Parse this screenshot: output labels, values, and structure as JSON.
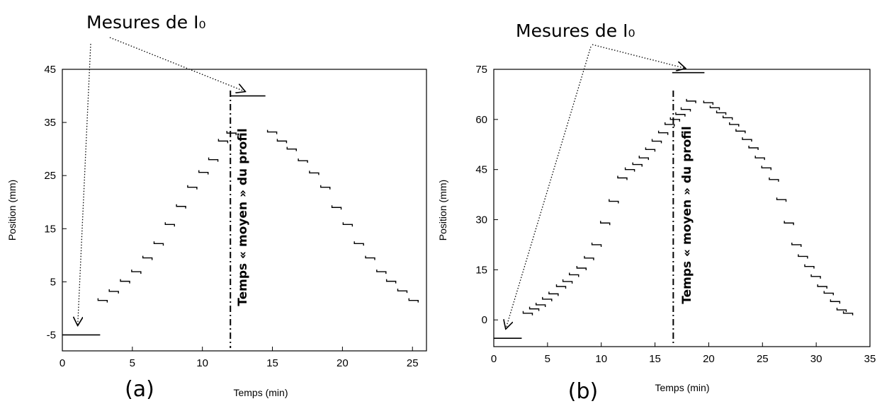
{
  "chart_data": [
    {
      "type": "line",
      "panel_label": "(a)",
      "xlabel": "Temps (min)",
      "ylabel": "Position (mm)",
      "xlim": [
        0,
        26
      ],
      "ylim": [
        -8,
        45
      ],
      "xticks": [
        0,
        5,
        10,
        15,
        20,
        25
      ],
      "yticks": [
        -5,
        5,
        15,
        25,
        35,
        45
      ],
      "mean_time": 12,
      "mean_time_label": "Temps « moyen » du profil",
      "annotation": "Mesures de I₀",
      "i0_segments": [
        {
          "x": [
            0,
            2.7
          ],
          "y": -5
        },
        {
          "x": [
            12,
            14.5
          ],
          "y": 40
        }
      ],
      "steps": [
        {
          "x": 2.6,
          "y": 1.5
        },
        {
          "x": 3.4,
          "y": 3.2
        },
        {
          "x": 4.2,
          "y": 5.1
        },
        {
          "x": 5.0,
          "y": 6.9
        },
        {
          "x": 5.8,
          "y": 9.5
        },
        {
          "x": 6.6,
          "y": 12.2
        },
        {
          "x": 7.4,
          "y": 15.8
        },
        {
          "x": 8.2,
          "y": 19.2
        },
        {
          "x": 9.0,
          "y": 22.8
        },
        {
          "x": 9.8,
          "y": 25.6
        },
        {
          "x": 10.5,
          "y": 28.0
        },
        {
          "x": 11.2,
          "y": 31.5
        },
        {
          "x": 11.8,
          "y": 33.0
        },
        {
          "x": 14.7,
          "y": 33.2
        },
        {
          "x": 15.4,
          "y": 31.5
        },
        {
          "x": 16.1,
          "y": 30.0
        },
        {
          "x": 16.9,
          "y": 27.8
        },
        {
          "x": 17.7,
          "y": 25.5
        },
        {
          "x": 18.5,
          "y": 22.8
        },
        {
          "x": 19.3,
          "y": 19.0
        },
        {
          "x": 20.1,
          "y": 15.8
        },
        {
          "x": 20.9,
          "y": 12.2
        },
        {
          "x": 21.7,
          "y": 9.5
        },
        {
          "x": 22.5,
          "y": 6.9
        },
        {
          "x": 23.2,
          "y": 5.1
        },
        {
          "x": 24.0,
          "y": 3.3
        },
        {
          "x": 24.8,
          "y": 1.5
        }
      ]
    },
    {
      "type": "line",
      "panel_label": "(b)",
      "xlabel": "Temps (min)",
      "ylabel": "Position (mm)",
      "xlim": [
        0,
        35
      ],
      "ylim": [
        -8,
        75
      ],
      "xticks": [
        0,
        5,
        10,
        15,
        20,
        25,
        30,
        35
      ],
      "yticks": [
        0,
        15,
        30,
        45,
        60,
        75
      ],
      "mean_time": 16.7,
      "mean_time_label": "Temps « moyen » du profil",
      "annotation": "Mesures de I₀",
      "i0_segments": [
        {
          "x": [
            0,
            2.6
          ],
          "y": -5.5
        },
        {
          "x": [
            16.6,
            19.6
          ],
          "y": 74
        }
      ],
      "steps": [
        {
          "x": 2.8,
          "y": 2.0
        },
        {
          "x": 3.4,
          "y": 3.3
        },
        {
          "x": 4.0,
          "y": 4.5
        },
        {
          "x": 4.6,
          "y": 6.2
        },
        {
          "x": 5.2,
          "y": 7.8
        },
        {
          "x": 5.9,
          "y": 10.0
        },
        {
          "x": 6.5,
          "y": 11.5
        },
        {
          "x": 7.1,
          "y": 13.5
        },
        {
          "x": 7.8,
          "y": 15.5
        },
        {
          "x": 8.5,
          "y": 18.5
        },
        {
          "x": 9.2,
          "y": 22.5
        },
        {
          "x": 10.0,
          "y": 29.0
        },
        {
          "x": 10.8,
          "y": 35.5
        },
        {
          "x": 11.6,
          "y": 42.5
        },
        {
          "x": 12.3,
          "y": 45.0
        },
        {
          "x": 13.0,
          "y": 46.5
        },
        {
          "x": 13.6,
          "y": 48.5
        },
        {
          "x": 14.2,
          "y": 51.0
        },
        {
          "x": 14.8,
          "y": 53.5
        },
        {
          "x": 15.4,
          "y": 56.0
        },
        {
          "x": 16.0,
          "y": 58.5
        },
        {
          "x": 16.5,
          "y": 60.0
        },
        {
          "x": 17.0,
          "y": 61.5
        },
        {
          "x": 17.5,
          "y": 63.0
        },
        {
          "x": 18.0,
          "y": 65.5
        },
        {
          "x": 19.6,
          "y": 65.0
        },
        {
          "x": 20.2,
          "y": 63.5
        },
        {
          "x": 20.8,
          "y": 62.0
        },
        {
          "x": 21.4,
          "y": 60.5
        },
        {
          "x": 22.0,
          "y": 58.5
        },
        {
          "x": 22.6,
          "y": 56.5
        },
        {
          "x": 23.2,
          "y": 54.0
        },
        {
          "x": 23.8,
          "y": 51.5
        },
        {
          "x": 24.4,
          "y": 48.5
        },
        {
          "x": 25.0,
          "y": 45.5
        },
        {
          "x": 25.7,
          "y": 42.0
        },
        {
          "x": 26.4,
          "y": 36.0
        },
        {
          "x": 27.1,
          "y": 29.0
        },
        {
          "x": 27.8,
          "y": 22.5
        },
        {
          "x": 28.4,
          "y": 19.0
        },
        {
          "x": 29.0,
          "y": 16.0
        },
        {
          "x": 29.6,
          "y": 13.0
        },
        {
          "x": 30.2,
          "y": 10.0
        },
        {
          "x": 30.8,
          "y": 8.0
        },
        {
          "x": 31.4,
          "y": 5.5
        },
        {
          "x": 32.0,
          "y": 3.0
        },
        {
          "x": 32.6,
          "y": 2.0
        }
      ]
    }
  ]
}
